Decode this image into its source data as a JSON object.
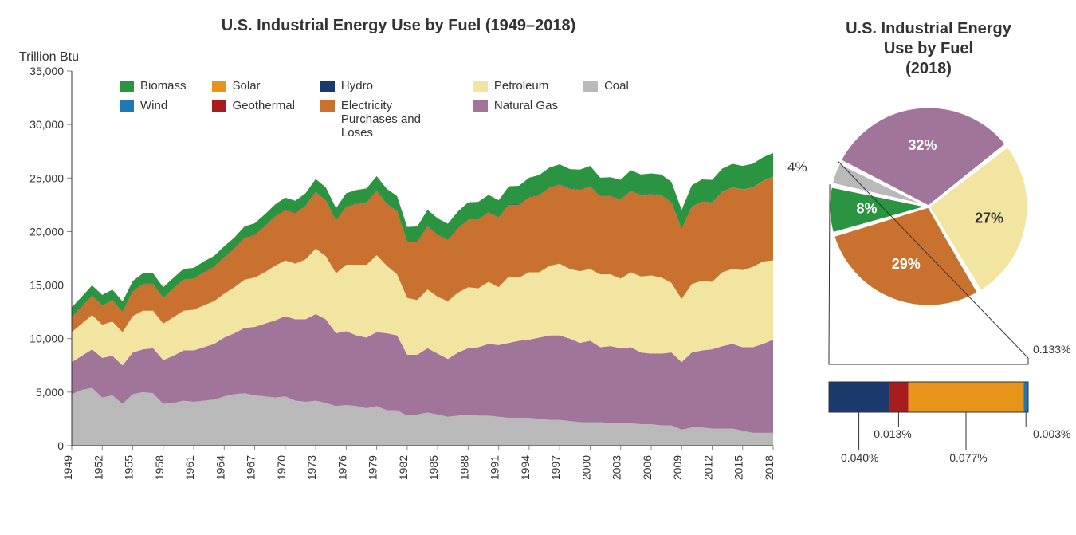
{
  "area_chart": {
    "type": "stacked-area",
    "title": "U.S. Industrial Energy Use by Fuel (1949–2018)",
    "y_axis_title": "Trillion Btu",
    "title_fontsize": 20,
    "label_fontsize": 16,
    "tick_fontsize": 14,
    "background_color": "#ffffff",
    "axis_color": "#333333",
    "tick_color": "#888888",
    "ylim": [
      0,
      35000
    ],
    "ytick_step": 5000,
    "yticks": [
      0,
      5000,
      10000,
      15000,
      20000,
      25000,
      30000,
      35000
    ],
    "ytick_labels": [
      "0",
      "5,000",
      "10,000",
      "15,000",
      "20,000",
      "25,000",
      "30,000",
      "35,000"
    ],
    "xlim": [
      1949,
      2018
    ],
    "xtick_step": 3,
    "xticks": [
      1949,
      1952,
      1955,
      1958,
      1961,
      1964,
      1967,
      1970,
      1973,
      1976,
      1979,
      1982,
      1985,
      1988,
      1991,
      1994,
      1997,
      2000,
      2003,
      2006,
      2009,
      2012,
      2015,
      2018
    ],
    "legend_order": [
      "biomass",
      "solar",
      "hydro",
      "petroleum",
      "coal",
      "wind",
      "geothermal",
      "electricity",
      "natural_gas"
    ],
    "legend_columns": 5,
    "series_meta": {
      "coal": {
        "label": "Coal",
        "color": "#b9b9b9"
      },
      "natural_gas": {
        "label": "Natural Gas",
        "color": "#a1749a"
      },
      "petroleum": {
        "label": "Petroleum",
        "color": "#f2e5a2"
      },
      "electricity": {
        "label": "Electricity Purchases and Loses",
        "color": "#c9722f"
      },
      "biomass": {
        "label": "Biomass",
        "color": "#2a9440"
      },
      "hydro": {
        "label": "Hydro",
        "color": "#1a3a6e"
      },
      "geothermal": {
        "label": "Geothermal",
        "color": "#a61c1c"
      },
      "solar": {
        "label": "Solar",
        "color": "#e8941a"
      },
      "wind": {
        "label": "Wind",
        "color": "#1f78b4"
      }
    },
    "stack_order": [
      "coal",
      "natural_gas",
      "petroleum",
      "electricity",
      "hydro",
      "geothermal",
      "solar",
      "wind",
      "biomass"
    ],
    "years": [
      1949,
      1950,
      1951,
      1952,
      1953,
      1954,
      1955,
      1956,
      1957,
      1958,
      1959,
      1960,
      1961,
      1962,
      1963,
      1964,
      1965,
      1966,
      1967,
      1968,
      1969,
      1970,
      1971,
      1972,
      1973,
      1974,
      1975,
      1976,
      1977,
      1978,
      1979,
      1980,
      1981,
      1982,
      1983,
      1984,
      1985,
      1986,
      1987,
      1988,
      1989,
      1990,
      1991,
      1992,
      1993,
      1994,
      1995,
      1996,
      1997,
      1998,
      1999,
      2000,
      2001,
      2002,
      2003,
      2004,
      2005,
      2006,
      2007,
      2008,
      2009,
      2010,
      2011,
      2012,
      2013,
      2014,
      2015,
      2016,
      2017,
      2018
    ],
    "series": {
      "coal": [
        4800,
        5200,
        5400,
        4500,
        4700,
        3900,
        4800,
        5000,
        4900,
        3900,
        4000,
        4200,
        4100,
        4200,
        4300,
        4600,
        4800,
        4900,
        4700,
        4600,
        4500,
        4600,
        4200,
        4100,
        4200,
        4000,
        3700,
        3800,
        3700,
        3500,
        3700,
        3300,
        3300,
        2800,
        2900,
        3100,
        2900,
        2700,
        2800,
        2900,
        2800,
        2800,
        2700,
        2600,
        2600,
        2600,
        2500,
        2400,
        2400,
        2300,
        2200,
        2200,
        2200,
        2100,
        2100,
        2100,
        2000,
        2000,
        1900,
        1900,
        1500,
        1700,
        1700,
        1600,
        1600,
        1600,
        1400,
        1200,
        1200,
        1200
      ],
      "natural_gas": [
        3000,
        3200,
        3600,
        3700,
        3700,
        3600,
        3900,
        4000,
        4200,
        4100,
        4400,
        4700,
        4800,
        5000,
        5200,
        5500,
        5700,
        6100,
        6400,
        6800,
        7200,
        7500,
        7600,
        7700,
        8100,
        7800,
        6800,
        6900,
        6600,
        6600,
        6900,
        7200,
        7000,
        5700,
        5600,
        6000,
        5700,
        5400,
        5900,
        6200,
        6400,
        6700,
        6700,
        7000,
        7200,
        7300,
        7600,
        7900,
        7900,
        7700,
        7400,
        7600,
        7000,
        7200,
        7000,
        7100,
        6700,
        6600,
        6700,
        6800,
        6300,
        7000,
        7200,
        7400,
        7700,
        7900,
        7800,
        8000,
        8300,
        8700
      ],
      "petroleum": [
        2800,
        3000,
        3200,
        3100,
        3200,
        3100,
        3400,
        3600,
        3500,
        3400,
        3600,
        3700,
        3800,
        3900,
        4000,
        4100,
        4300,
        4500,
        4600,
        4800,
        5100,
        5200,
        5200,
        5600,
        6100,
        5900,
        5600,
        6200,
        6600,
        6800,
        7200,
        6300,
        5700,
        5300,
        5100,
        5500,
        5300,
        5400,
        5600,
        5700,
        5500,
        5800,
        5400,
        6200,
        5900,
        6300,
        6100,
        6500,
        6700,
        6500,
        6700,
        6700,
        6800,
        6700,
        6500,
        7000,
        7100,
        7300,
        7100,
        6500,
        5900,
        6400,
        6500,
        6300,
        6900,
        7000,
        7200,
        7500,
        7700,
        7400
      ],
      "electricity": [
        1400,
        1600,
        1800,
        1800,
        2000,
        1900,
        2300,
        2500,
        2500,
        2400,
        2700,
        2900,
        2900,
        3100,
        3200,
        3400,
        3600,
        3900,
        4000,
        4300,
        4600,
        4700,
        4700,
        5000,
        5300,
        5200,
        4900,
        5400,
        5700,
        5800,
        6000,
        5800,
        5900,
        5200,
        5400,
        5900,
        5800,
        5700,
        6000,
        6300,
        6400,
        6500,
        6500,
        6700,
        6800,
        7000,
        7200,
        7300,
        7400,
        7500,
        7600,
        7700,
        7300,
        7300,
        7400,
        7600,
        7600,
        7600,
        7700,
        7500,
        6500,
        7200,
        7400,
        7400,
        7500,
        7600,
        7500,
        7400,
        7500,
        7800
      ],
      "hydro": [
        30,
        30,
        30,
        30,
        30,
        30,
        30,
        30,
        30,
        30,
        30,
        30,
        30,
        30,
        30,
        30,
        30,
        30,
        30,
        30,
        30,
        30,
        30,
        30,
        30,
        30,
        30,
        30,
        30,
        30,
        30,
        30,
        30,
        30,
        30,
        30,
        30,
        30,
        30,
        30,
        30,
        30,
        30,
        30,
        30,
        30,
        30,
        30,
        30,
        30,
        30,
        30,
        30,
        30,
        30,
        30,
        30,
        30,
        30,
        30,
        20,
        20,
        20,
        15,
        15,
        12,
        12,
        11,
        11,
        11
      ],
      "geothermal": [
        0,
        0,
        0,
        0,
        0,
        0,
        0,
        0,
        0,
        0,
        0,
        0,
        0,
        0,
        0,
        0,
        0,
        0,
        0,
        0,
        0,
        0,
        0,
        0,
        0,
        0,
        0,
        0,
        0,
        0,
        0,
        0,
        0,
        0,
        0,
        0,
        0,
        0,
        0,
        0,
        0,
        0,
        0,
        0,
        0,
        0,
        0,
        0,
        0,
        0,
        0,
        0,
        0,
        0,
        1,
        1,
        1,
        2,
        2,
        2,
        2,
        3,
        3,
        3,
        3,
        3,
        3,
        3,
        4,
        4
      ],
      "solar": [
        0,
        0,
        0,
        0,
        0,
        0,
        0,
        0,
        0,
        0,
        0,
        0,
        0,
        0,
        0,
        0,
        0,
        0,
        0,
        0,
        0,
        0,
        0,
        0,
        0,
        0,
        0,
        0,
        0,
        0,
        0,
        0,
        0,
        0,
        0,
        0,
        0,
        0,
        0,
        0,
        0,
        0,
        0,
        0,
        0,
        0,
        0,
        0,
        0,
        0,
        0,
        0,
        0,
        0,
        0,
        0,
        0,
        0,
        0,
        0,
        1,
        2,
        3,
        5,
        8,
        10,
        13,
        16,
        18,
        21
      ],
      "wind": [
        0,
        0,
        0,
        0,
        0,
        0,
        0,
        0,
        0,
        0,
        0,
        0,
        0,
        0,
        0,
        0,
        0,
        0,
        0,
        0,
        0,
        0,
        0,
        0,
        0,
        0,
        0,
        0,
        0,
        0,
        0,
        0,
        0,
        0,
        0,
        0,
        0,
        0,
        0,
        0,
        0,
        0,
        0,
        0,
        0,
        0,
        0,
        0,
        0,
        0,
        0,
        0,
        0,
        0,
        0,
        0,
        0,
        0,
        0,
        0,
        0,
        0,
        0,
        0,
        0,
        0,
        0,
        0,
        1,
        1
      ],
      "biomass": [
        900,
        900,
        950,
        950,
        950,
        950,
        950,
        970,
        970,
        970,
        950,
        980,
        980,
        980,
        990,
        1000,
        1020,
        1050,
        1050,
        1080,
        1100,
        1150,
        1150,
        1150,
        1180,
        1200,
        1150,
        1250,
        1250,
        1300,
        1350,
        1350,
        1400,
        1400,
        1450,
        1500,
        1500,
        1500,
        1550,
        1600,
        1650,
        1600,
        1600,
        1700,
        1750,
        1800,
        1850,
        1850,
        1850,
        1800,
        1850,
        1900,
        1700,
        1750,
        1800,
        1900,
        1900,
        1900,
        1900,
        1900,
        1800,
        2000,
        2050,
        2100,
        2150,
        2200,
        2200,
        2200,
        2200,
        2200
      ]
    }
  },
  "pie_chart": {
    "type": "pie",
    "title": "U.S. Industrial Energy Use by Fuel (2018)",
    "title_line1": "U.S. Industrial Energy",
    "title_line2": "Use by Fuel",
    "title_line3": "(2018)",
    "title_fontsize": 20,
    "label_fontsize": 18,
    "stroke_color": "#ffffff",
    "stroke_width": 3,
    "slices": [
      {
        "key": "petroleum",
        "label": "27%",
        "value": 27,
        "color": "#f2e5a2",
        "label_color": "#333333"
      },
      {
        "key": "electricity",
        "label": "29%",
        "value": 29,
        "color": "#c9722f",
        "label_color": "#ffffff"
      },
      {
        "key": "biomass",
        "label": "8%",
        "value": 8,
        "color": "#2a9440",
        "label_color": "#ffffff"
      },
      {
        "key": "coal",
        "label": "4%",
        "value": 4,
        "color": "#b9b9b9",
        "label_color": "#333333",
        "label_outside": true
      },
      {
        "key": "natural_gas",
        "label": "32%",
        "value": 32,
        "color": "#a1749a",
        "label_color": "#ffffff"
      }
    ],
    "slice_gap_deg": 1.5,
    "start_angle_deg": -38
  },
  "breakout_bar": {
    "type": "stacked-bar-horizontal",
    "total_label": "0.133%",
    "segments": [
      {
        "key": "hydro",
        "label": "0.040%",
        "value": 0.04,
        "color": "#1a3a6e"
      },
      {
        "key": "geothermal",
        "label": "0.013%",
        "value": 0.013,
        "color": "#a61c1c"
      },
      {
        "key": "solar",
        "label": "0.077%",
        "value": 0.077,
        "color": "#e8941a"
      },
      {
        "key": "wind",
        "label": "0.003%",
        "value": 0.003,
        "color": "#1f78b4"
      }
    ],
    "border_color": "#333333"
  }
}
